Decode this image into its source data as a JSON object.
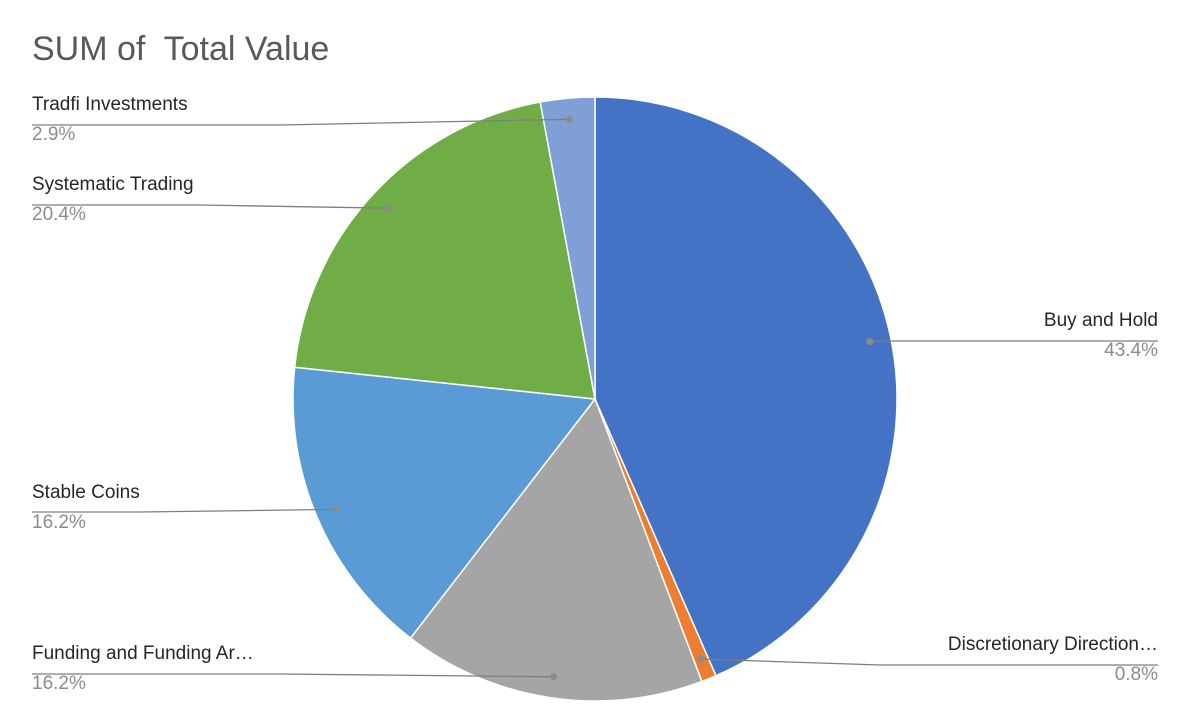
{
  "chart_data": {
    "type": "pie",
    "title": "SUM of  Total Value",
    "categories": [
      "Buy and Hold",
      "Discretionary Direction…",
      "Funding and Funding Ar…",
      "Stable Coins",
      "Systematic Trading",
      "Tradfi Investments"
    ],
    "values": [
      43.4,
      0.8,
      16.2,
      16.2,
      20.4,
      2.9
    ],
    "value_labels": [
      "43.4%",
      "0.8%",
      "16.2%",
      "16.2%",
      "20.4%",
      "2.9%"
    ],
    "colors": [
      "#4472c4",
      "#ed7d31",
      "#a5a5a5",
      "#5b9bd5",
      "#70ad47",
      "#7f9fd6"
    ],
    "start_angle_deg": 0,
    "direction": "clockwise",
    "legend": "none",
    "label_style": "outside-with-leader-lines"
  }
}
